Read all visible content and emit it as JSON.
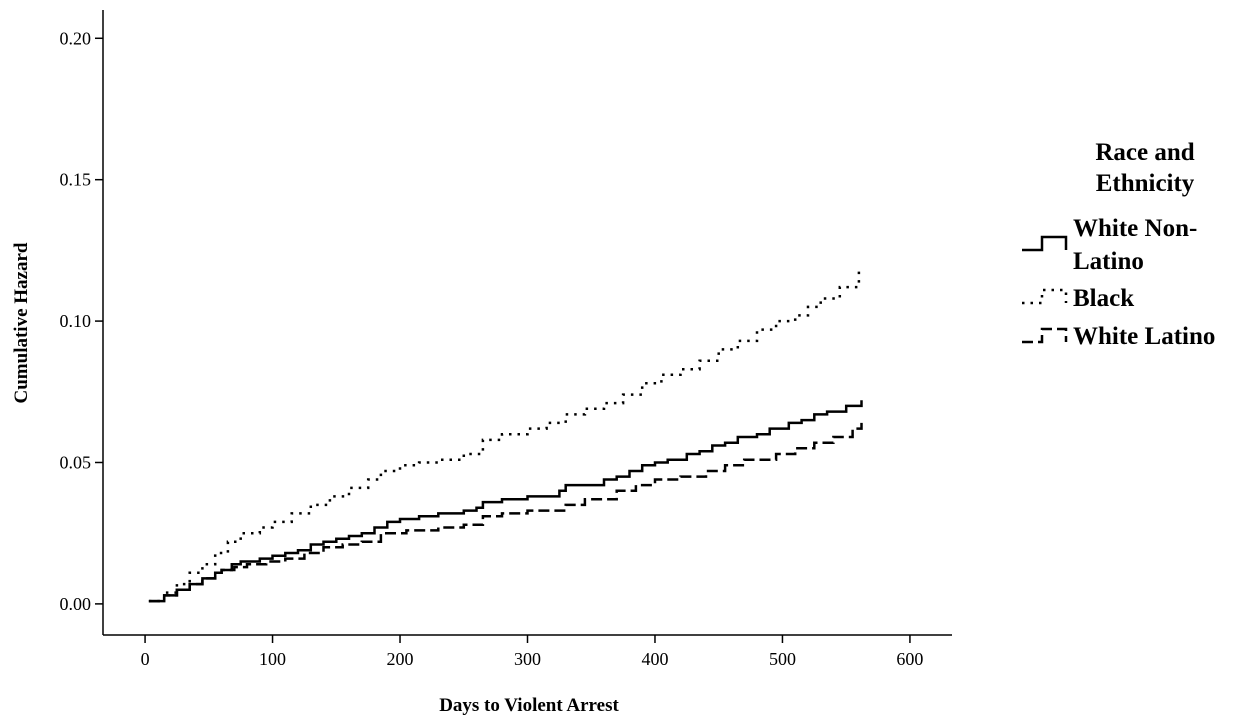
{
  "chart_data": {
    "type": "line",
    "xlabel": "Days to Violent Arrest",
    "ylabel": "Cumulative Hazard",
    "xlim": [
      -33,
      633
    ],
    "ylim": [
      -0.011,
      0.21
    ],
    "xticks": [
      0,
      100,
      200,
      300,
      400,
      500,
      600
    ],
    "xtick_labels": [
      "0",
      "100",
      "200",
      "300",
      "400",
      "500",
      "600"
    ],
    "yticks": [
      0.0,
      0.05,
      0.1,
      0.15,
      0.2
    ],
    "ytick_labels": [
      "0.00",
      "0.05",
      "0.10",
      "0.15",
      "0.20"
    ],
    "grid": false,
    "step": true,
    "legend": {
      "title_lines": [
        "Race and",
        "Ethnicity"
      ],
      "position": "right"
    },
    "series": [
      {
        "name_lines": [
          "White Non-",
          "Latino"
        ],
        "style": "solid",
        "color": "#000000",
        "x": [
          3,
          15,
          25,
          35,
          45,
          55,
          60,
          68,
          75,
          90,
          100,
          110,
          120,
          130,
          140,
          150,
          160,
          170,
          180,
          190,
          200,
          215,
          230,
          250,
          260,
          265,
          280,
          300,
          325,
          330,
          360,
          370,
          380,
          390,
          400,
          410,
          425,
          435,
          445,
          455,
          465,
          480,
          490,
          505,
          515,
          525,
          535,
          550,
          562
        ],
        "y": [
          0.001,
          0.003,
          0.005,
          0.007,
          0.009,
          0.011,
          0.012,
          0.014,
          0.015,
          0.016,
          0.017,
          0.018,
          0.019,
          0.021,
          0.022,
          0.023,
          0.024,
          0.025,
          0.027,
          0.029,
          0.03,
          0.031,
          0.032,
          0.033,
          0.034,
          0.036,
          0.037,
          0.038,
          0.04,
          0.042,
          0.044,
          0.045,
          0.047,
          0.049,
          0.05,
          0.051,
          0.053,
          0.054,
          0.056,
          0.057,
          0.059,
          0.06,
          0.062,
          0.064,
          0.065,
          0.067,
          0.068,
          0.07,
          0.072
        ]
      },
      {
        "name_lines": [
          "Black"
        ],
        "style": "dotted",
        "color": "#000000",
        "x": [
          3,
          15,
          25,
          35,
          45,
          55,
          65,
          75,
          90,
          100,
          115,
          130,
          145,
          160,
          175,
          185,
          200,
          215,
          230,
          250,
          265,
          280,
          300,
          315,
          330,
          345,
          360,
          375,
          390,
          405,
          420,
          435,
          450,
          465,
          480,
          495,
          510,
          520,
          530,
          545,
          560
        ],
        "y": [
          0.001,
          0.004,
          0.007,
          0.011,
          0.014,
          0.018,
          0.022,
          0.025,
          0.027,
          0.029,
          0.032,
          0.035,
          0.038,
          0.041,
          0.044,
          0.047,
          0.049,
          0.05,
          0.051,
          0.053,
          0.058,
          0.06,
          0.062,
          0.064,
          0.067,
          0.069,
          0.071,
          0.074,
          0.078,
          0.081,
          0.083,
          0.086,
          0.09,
          0.093,
          0.097,
          0.1,
          0.102,
          0.105,
          0.108,
          0.112,
          0.118
        ]
      },
      {
        "name_lines": [
          "White Latino"
        ],
        "style": "dashed",
        "color": "#000000",
        "x": [
          3,
          15,
          25,
          35,
          45,
          55,
          60,
          70,
          80,
          95,
          110,
          125,
          140,
          155,
          170,
          185,
          205,
          230,
          250,
          265,
          280,
          300,
          330,
          345,
          370,
          385,
          400,
          420,
          440,
          455,
          470,
          495,
          510,
          525,
          540,
          555,
          562
        ],
        "y": [
          0.001,
          0.003,
          0.005,
          0.007,
          0.009,
          0.011,
          0.012,
          0.013,
          0.014,
          0.015,
          0.016,
          0.018,
          0.02,
          0.021,
          0.022,
          0.025,
          0.026,
          0.027,
          0.028,
          0.031,
          0.032,
          0.033,
          0.035,
          0.037,
          0.04,
          0.042,
          0.044,
          0.045,
          0.047,
          0.049,
          0.051,
          0.053,
          0.055,
          0.057,
          0.059,
          0.062,
          0.064
        ]
      }
    ]
  }
}
